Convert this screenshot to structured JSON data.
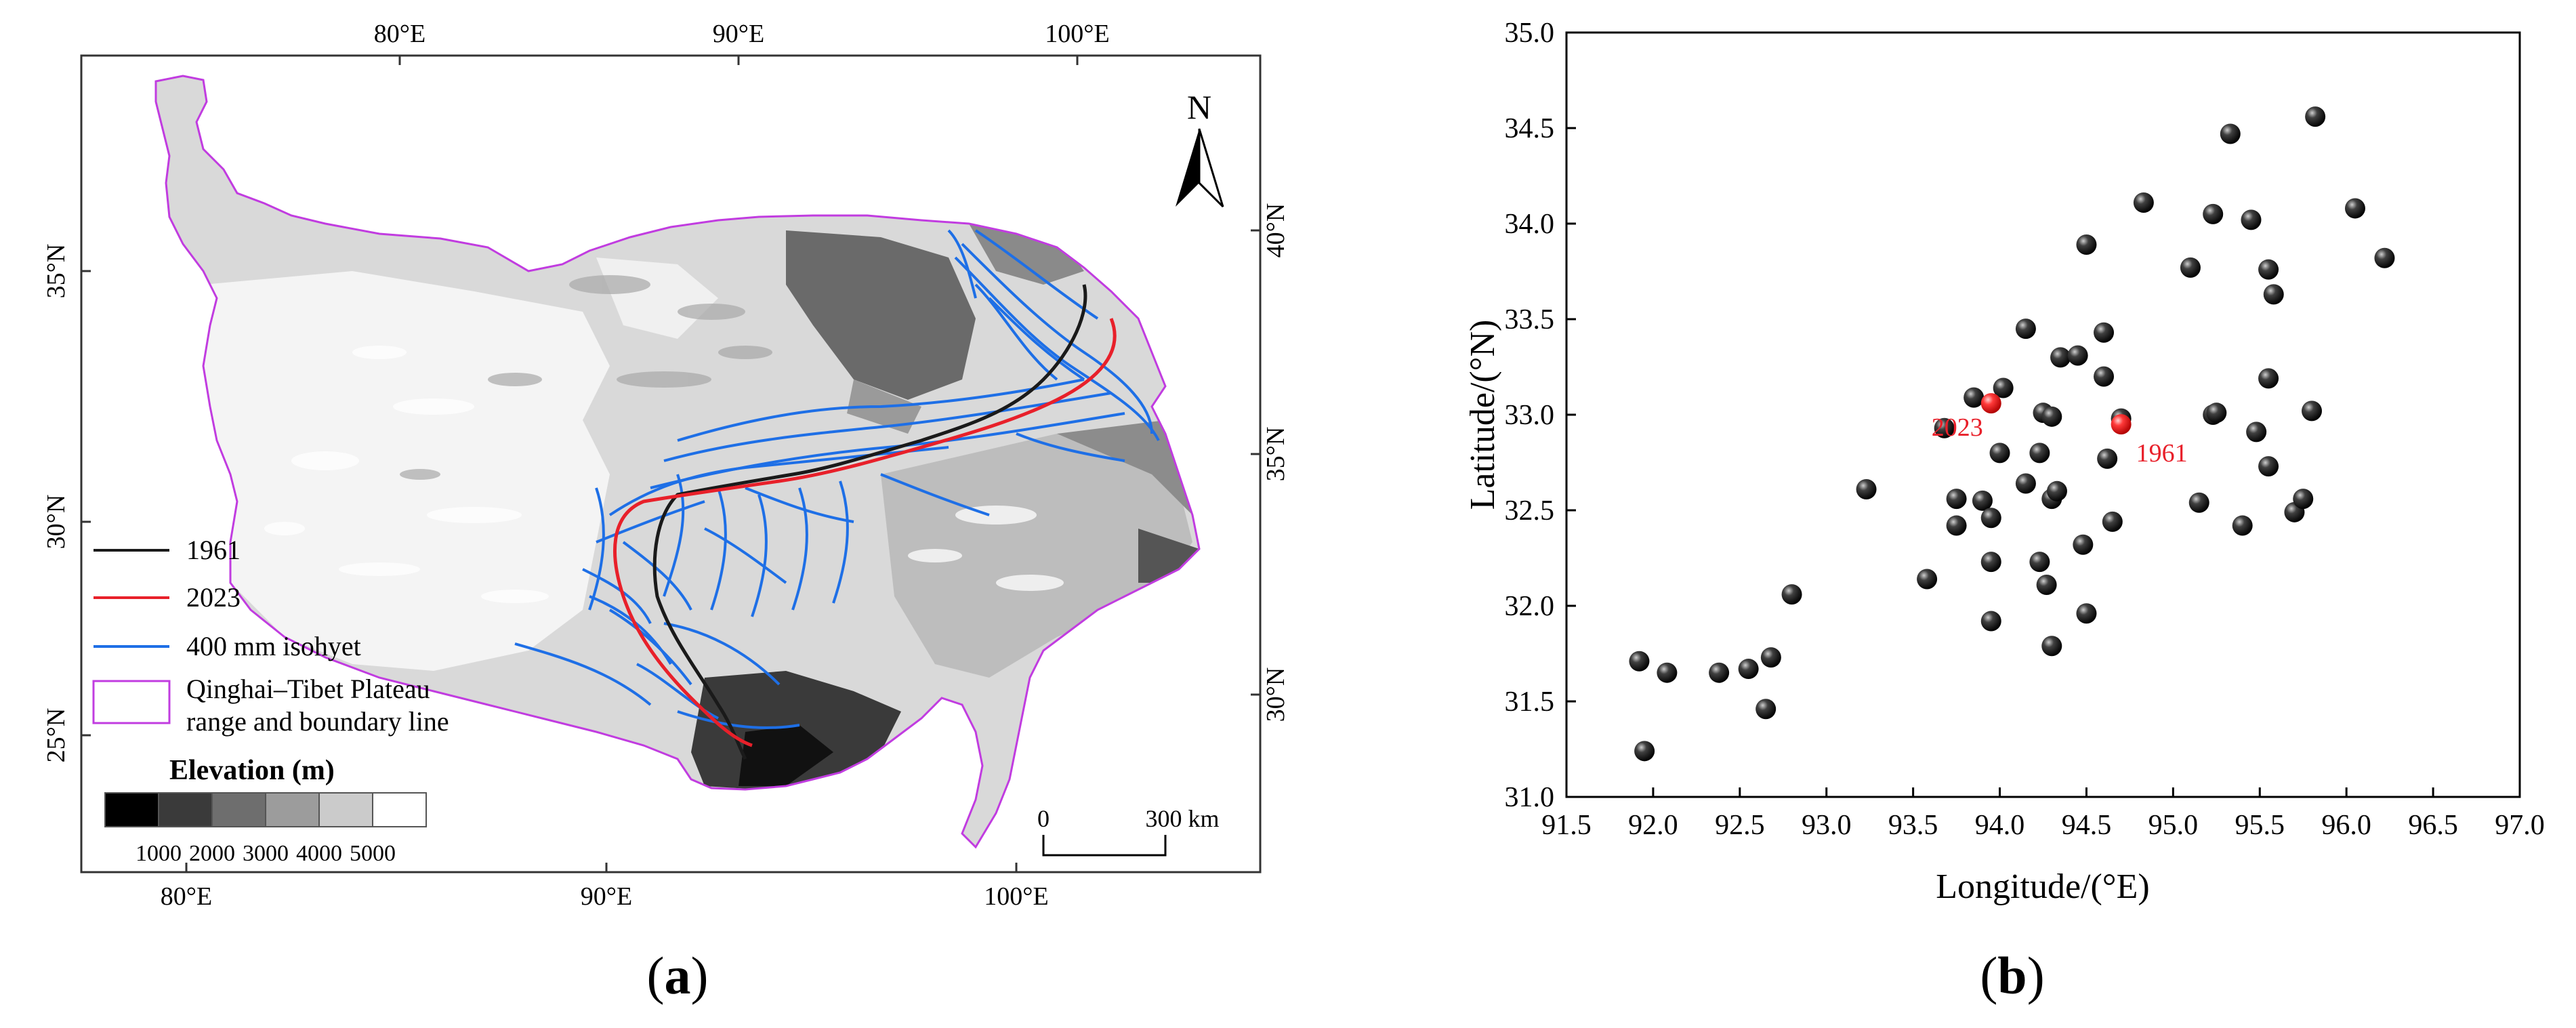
{
  "panel_a": {
    "top_lon_labels": [
      "80°E",
      "90°E",
      "100°E"
    ],
    "bottom_lon_labels": [
      "80°E",
      "90°E",
      "100°E"
    ],
    "left_lat_labels": [
      "35°N",
      "30°N",
      "25°N"
    ],
    "right_lat_labels": [
      "40°N",
      "35°N",
      "30°N"
    ],
    "north_arrow": "N",
    "legend": {
      "items": [
        {
          "label": "1961",
          "color": "#1a1a1a"
        },
        {
          "label": "2023",
          "color": "#e8202a"
        },
        {
          "label": "400 mm isohyet",
          "color": "#1e6fe6"
        }
      ],
      "boundary_label_line1": "Qinghai–Tibet Plateau",
      "boundary_label_line2": "range and boundary line",
      "boundary_color": "#c13ce0",
      "elevation_title": "Elevation (m)",
      "elevation_ticks": [
        "1000",
        "2000",
        "3000",
        "4000",
        "5000"
      ],
      "elevation_colors": [
        "#000000",
        "#3a3a3a",
        "#6e6e6e",
        "#9c9c9c",
        "#cbcbcb",
        "#ffffff"
      ]
    },
    "scale": {
      "start": "0",
      "end": "300 km"
    },
    "caption_letter": "a"
  },
  "chart_data": {
    "type": "scatter",
    "xlabel": "Longitude/(°E)",
    "ylabel": "Latitude/(°N)",
    "xlim": [
      91.5,
      97.0
    ],
    "ylim": [
      31.0,
      35.0
    ],
    "xticks": [
      "91.5",
      "92.0",
      "92.5",
      "93.0",
      "93.5",
      "94.0",
      "94.5",
      "95.0",
      "95.5",
      "96.0",
      "96.5",
      "97.0"
    ],
    "yticks": [
      "31.0",
      "31.5",
      "32.0",
      "32.5",
      "33.0",
      "33.5",
      "34.0",
      "34.5",
      "35.0"
    ],
    "grid": false,
    "series": [
      {
        "points": [
          [
            91.92,
            31.71
          ],
          [
            91.95,
            31.24
          ],
          [
            92.08,
            31.65
          ],
          [
            92.38,
            31.65
          ],
          [
            92.55,
            31.67
          ],
          [
            92.68,
            31.73
          ],
          [
            92.65,
            31.46
          ],
          [
            92.8,
            32.06
          ],
          [
            93.23,
            32.61
          ],
          [
            93.58,
            32.14
          ],
          [
            93.68,
            32.93
          ],
          [
            93.75,
            32.56
          ],
          [
            93.75,
            32.42
          ],
          [
            93.85,
            33.09
          ],
          [
            93.9,
            32.55
          ],
          [
            93.95,
            32.46
          ],
          [
            93.95,
            32.23
          ],
          [
            93.95,
            31.92
          ],
          [
            94.02,
            33.14
          ],
          [
            94.0,
            32.8
          ],
          [
            94.15,
            33.45
          ],
          [
            94.15,
            32.64
          ],
          [
            94.23,
            32.23
          ],
          [
            94.23,
            32.8
          ],
          [
            94.25,
            33.01
          ],
          [
            94.27,
            32.11
          ],
          [
            94.3,
            32.99
          ],
          [
            94.3,
            32.56
          ],
          [
            94.33,
            32.6
          ],
          [
            94.3,
            31.79
          ],
          [
            94.35,
            33.3
          ],
          [
            94.45,
            33.31
          ],
          [
            94.48,
            32.32
          ],
          [
            94.5,
            33.89
          ],
          [
            94.5,
            31.96
          ],
          [
            94.6,
            33.43
          ],
          [
            94.6,
            33.2
          ],
          [
            94.62,
            32.77
          ],
          [
            94.65,
            32.44
          ],
          [
            94.7,
            32.98
          ],
          [
            94.83,
            34.11
          ],
          [
            95.1,
            33.77
          ],
          [
            95.15,
            32.54
          ],
          [
            95.23,
            34.05
          ],
          [
            95.23,
            33.0
          ],
          [
            95.25,
            33.01
          ],
          [
            95.33,
            34.47
          ],
          [
            95.4,
            32.42
          ],
          [
            95.45,
            34.02
          ],
          [
            95.48,
            32.91
          ],
          [
            95.55,
            33.76
          ],
          [
            95.55,
            33.19
          ],
          [
            95.55,
            32.73
          ],
          [
            95.58,
            33.63
          ],
          [
            95.7,
            32.49
          ],
          [
            95.75,
            32.56
          ],
          [
            95.8,
            33.02
          ],
          [
            95.82,
            34.56
          ],
          [
            96.05,
            34.08
          ],
          [
            96.22,
            33.82
          ]
        ],
        "color": "#000000"
      },
      {
        "points": [
          [
            93.95,
            33.06
          ],
          [
            94.7,
            32.95
          ]
        ],
        "labels": [
          "2023",
          "1961"
        ],
        "color": "#e8202a"
      }
    ],
    "caption_letter": "b"
  }
}
